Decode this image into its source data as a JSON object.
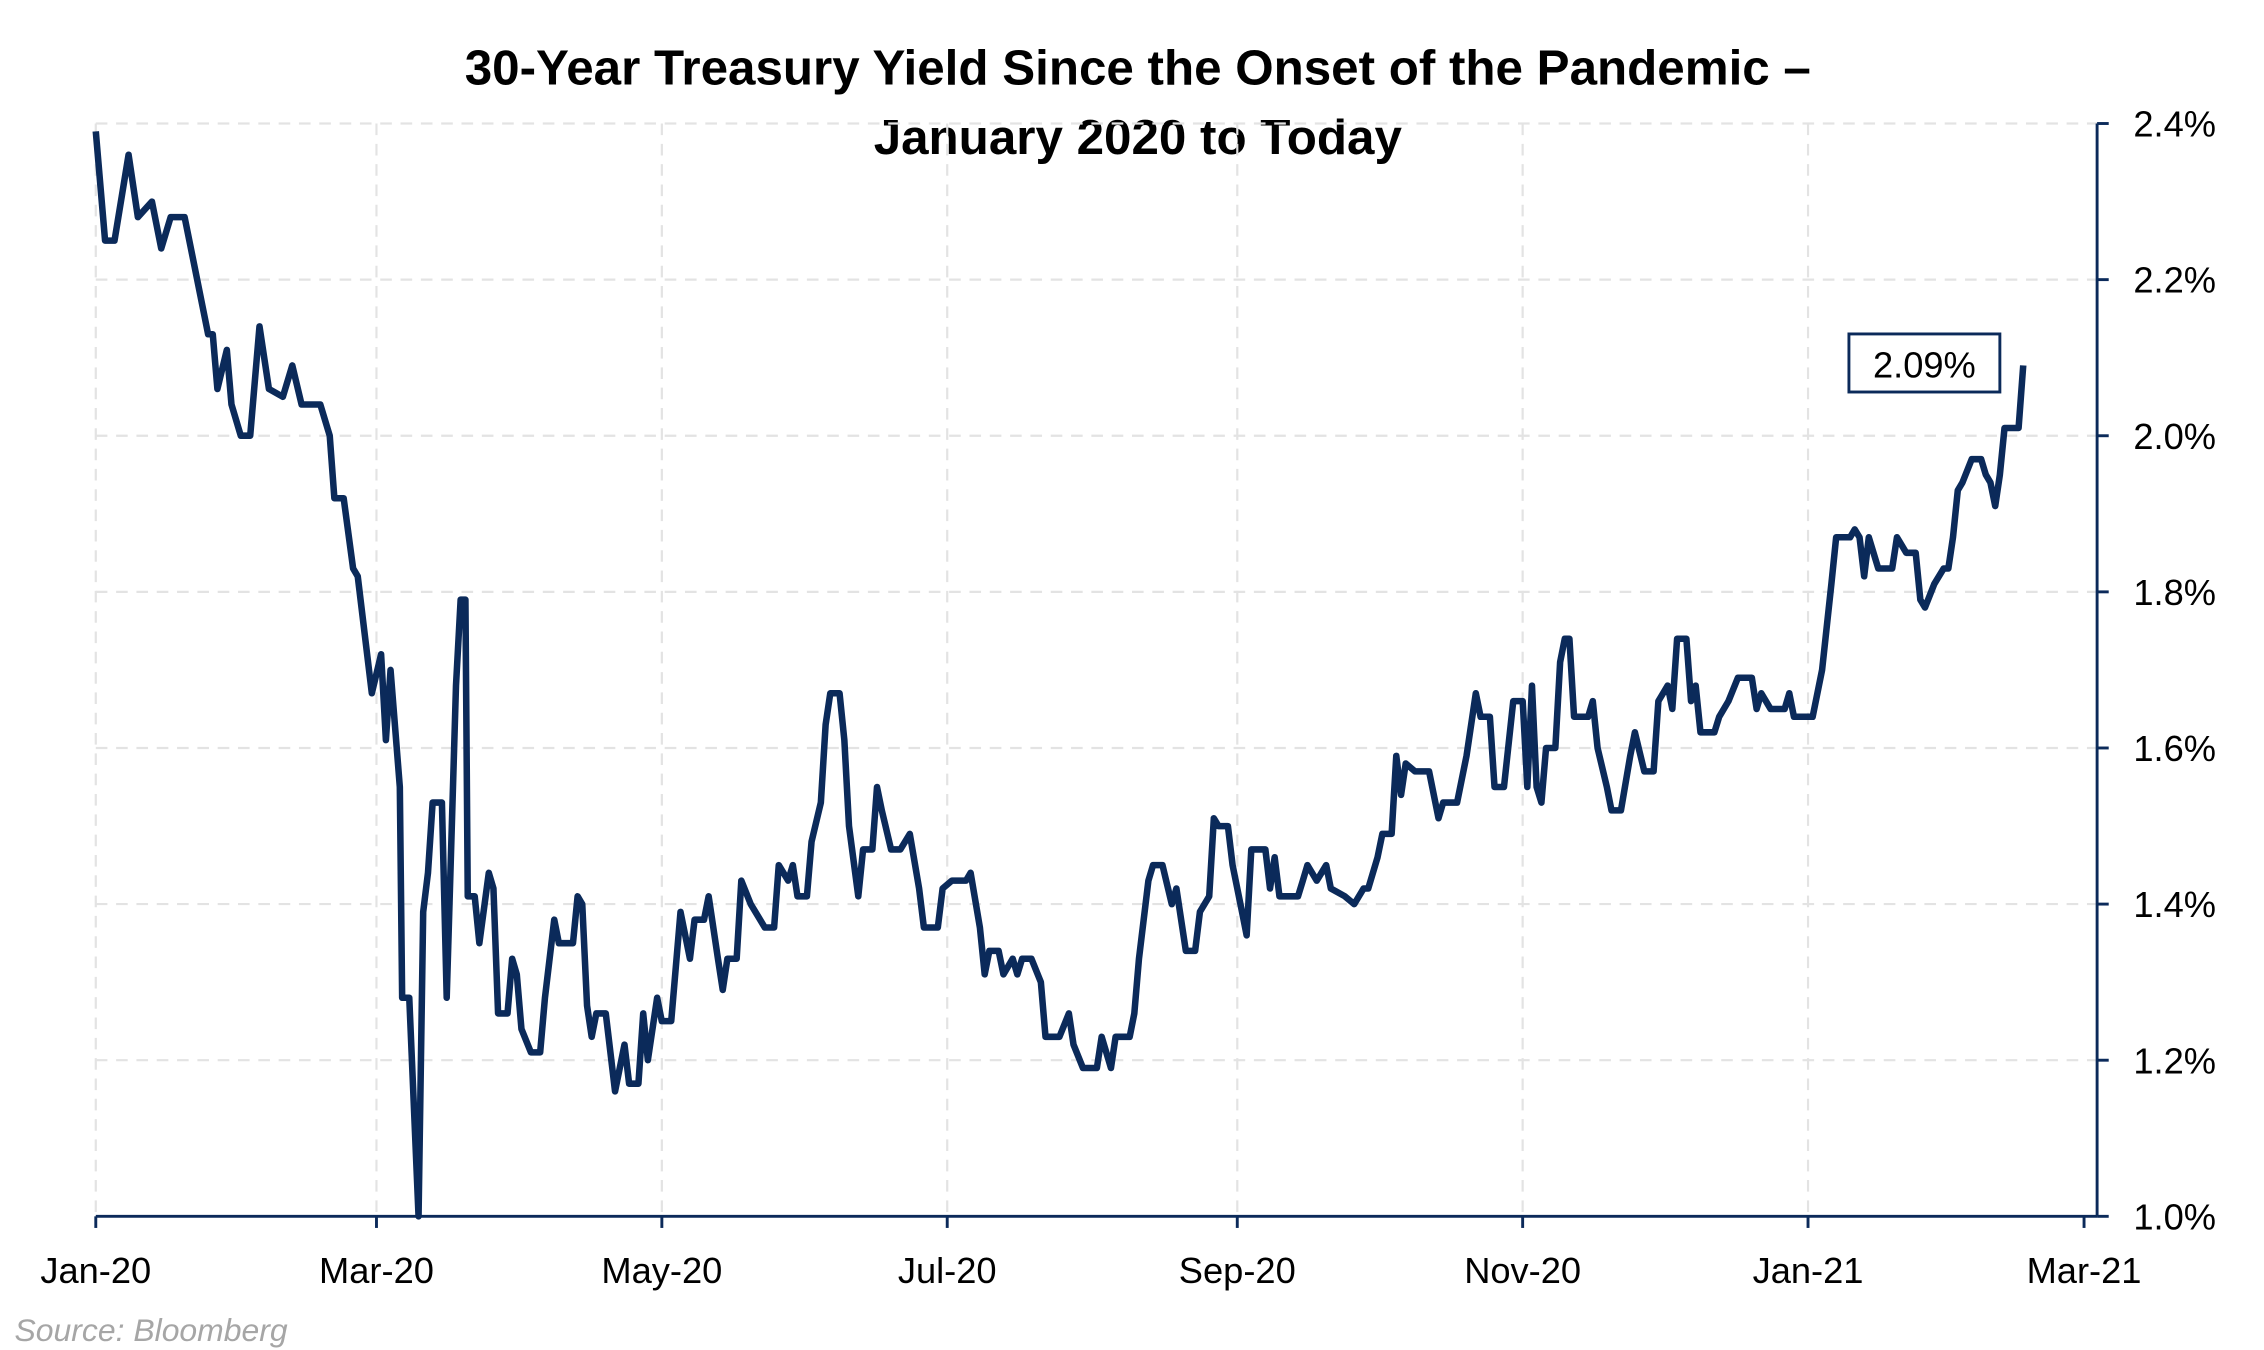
{
  "chart_data": {
    "type": "line",
    "title": [
      "30-Year Treasury Yield Since the Onset of the Pandemic –",
      "January 2020 to Today"
    ],
    "source": "Source: Bloomberg",
    "x_unit": "days since 2020-01-01",
    "xlim": [
      0,
      425
    ],
    "ylim": [
      1.0,
      2.4
    ],
    "y_axis_side": "right",
    "grid": true,
    "x_ticks": [
      {
        "day": 0,
        "label": "Jan-20"
      },
      {
        "day": 60,
        "label": "Mar-20"
      },
      {
        "day": 121,
        "label": "May-20"
      },
      {
        "day": 182,
        "label": "Jul-20"
      },
      {
        "day": 244,
        "label": "Sep-20"
      },
      {
        "day": 305,
        "label": "Nov-20"
      },
      {
        "day": 366,
        "label": "Jan-21"
      },
      {
        "day": 425,
        "label": "Mar-21"
      }
    ],
    "y_ticks": [
      {
        "value": 1.0,
        "label": "1.0%"
      },
      {
        "value": 1.2,
        "label": "1.2%"
      },
      {
        "value": 1.4,
        "label": "1.4%"
      },
      {
        "value": 1.6,
        "label": "1.6%"
      },
      {
        "value": 1.8,
        "label": "1.8%"
      },
      {
        "value": 2.0,
        "label": "2.0%"
      },
      {
        "value": 2.2,
        "label": "2.2%"
      },
      {
        "value": 2.4,
        "label": "2.4%"
      }
    ],
    "annotation": {
      "label": "2.09%",
      "value": 2.09
    },
    "series": [
      {
        "name": "30-Year Treasury Yield",
        "color": "#0b2a5a",
        "x": [
          0,
          2,
          4,
          7,
          9,
          12,
          14,
          16,
          19,
          21,
          24,
          25,
          26,
          28,
          29,
          31,
          33,
          35,
          37,
          40,
          42,
          44,
          48,
          50,
          51,
          53,
          55,
          56,
          59,
          61,
          62,
          63,
          65,
          65.5,
          67,
          69,
          70,
          71,
          72,
          74,
          75,
          77,
          78,
          79,
          79.5,
          81,
          82,
          84,
          85,
          86,
          88,
          89,
          90,
          91,
          93,
          95,
          96,
          98,
          99,
          102,
          103,
          104,
          105,
          106,
          107,
          109,
          111,
          113,
          114,
          116,
          117,
          118,
          120,
          121,
          123,
          125,
          127,
          128,
          130,
          131,
          133,
          134,
          135,
          137,
          138,
          140,
          143,
          145,
          146,
          148,
          149,
          150,
          152,
          153,
          155,
          156,
          157,
          159,
          160,
          161,
          163,
          164,
          166,
          167,
          168,
          170,
          172,
          174,
          176,
          177,
          180,
          181,
          183,
          186,
          187,
          189,
          190,
          191,
          193,
          194,
          196,
          197,
          198,
          200,
          202,
          203,
          206,
          208,
          209,
          211,
          214,
          215,
          217,
          218,
          221,
          222,
          223,
          225,
          226,
          228,
          230,
          231,
          233,
          235,
          236,
          238,
          239,
          240,
          242,
          243,
          245,
          246,
          247,
          250,
          251,
          252,
          253,
          257,
          258,
          259,
          261,
          263,
          264,
          267,
          269,
          271,
          272,
          274,
          275,
          277,
          278,
          279,
          280,
          282,
          285,
          287,
          288,
          291,
          293,
          295,
          296,
          298,
          299,
          301,
          303,
          305,
          306,
          307,
          308,
          309,
          310,
          312,
          313,
          314,
          315,
          316,
          319,
          320,
          321,
          323,
          324,
          326,
          328,
          329,
          331,
          333,
          334,
          336,
          337,
          338,
          340,
          341,
          342,
          343,
          346,
          347,
          349,
          351,
          354,
          355,
          356,
          358,
          361,
          362,
          363,
          367,
          369,
          371,
          372,
          375,
          376,
          377,
          378,
          379,
          381,
          384,
          385,
          387,
          389,
          390,
          391,
          393,
          395,
          396,
          397,
          398,
          399,
          401,
          403,
          404,
          405,
          406,
          407,
          408,
          411,
          412
        ],
        "values": [
          2.39,
          2.25,
          2.25,
          2.36,
          2.28,
          2.3,
          2.24,
          2.28,
          2.28,
          2.22,
          2.13,
          2.13,
          2.06,
          2.11,
          2.04,
          2.0,
          2.0,
          2.14,
          2.06,
          2.05,
          2.09,
          2.04,
          2.04,
          2.0,
          1.92,
          1.92,
          1.83,
          1.82,
          1.67,
          1.72,
          1.61,
          1.7,
          1.55,
          1.28,
          1.28,
          1.0,
          1.39,
          1.44,
          1.53,
          1.53,
          1.28,
          1.68,
          1.79,
          1.79,
          1.41,
          1.41,
          1.35,
          1.44,
          1.42,
          1.26,
          1.26,
          1.33,
          1.31,
          1.24,
          1.21,
          1.21,
          1.28,
          1.38,
          1.35,
          1.35,
          1.41,
          1.4,
          1.27,
          1.23,
          1.26,
          1.26,
          1.16,
          1.22,
          1.17,
          1.17,
          1.26,
          1.2,
          1.28,
          1.25,
          1.25,
          1.39,
          1.33,
          1.38,
          1.38,
          1.41,
          1.33,
          1.29,
          1.33,
          1.33,
          1.43,
          1.4,
          1.37,
          1.37,
          1.45,
          1.43,
          1.45,
          1.41,
          1.41,
          1.48,
          1.53,
          1.63,
          1.67,
          1.67,
          1.61,
          1.5,
          1.41,
          1.47,
          1.47,
          1.55,
          1.52,
          1.47,
          1.47,
          1.49,
          1.42,
          1.37,
          1.37,
          1.42,
          1.43,
          1.43,
          1.44,
          1.37,
          1.31,
          1.34,
          1.34,
          1.31,
          1.33,
          1.31,
          1.33,
          1.33,
          1.3,
          1.23,
          1.23,
          1.26,
          1.22,
          1.19,
          1.19,
          1.23,
          1.19,
          1.23,
          1.23,
          1.26,
          1.33,
          1.43,
          1.45,
          1.45,
          1.4,
          1.42,
          1.34,
          1.34,
          1.39,
          1.41,
          1.51,
          1.5,
          1.5,
          1.45,
          1.39,
          1.36,
          1.47,
          1.47,
          1.42,
          1.46,
          1.41,
          1.41,
          1.43,
          1.45,
          1.43,
          1.45,
          1.42,
          1.41,
          1.4,
          1.42,
          1.42,
          1.46,
          1.49,
          1.49,
          1.59,
          1.54,
          1.58,
          1.57,
          1.57,
          1.51,
          1.53,
          1.53,
          1.59,
          1.67,
          1.64,
          1.64,
          1.55,
          1.55,
          1.66,
          1.66,
          1.55,
          1.68,
          1.55,
          1.53,
          1.6,
          1.6,
          1.71,
          1.74,
          1.74,
          1.64,
          1.64,
          1.66,
          1.6,
          1.55,
          1.52,
          1.52,
          1.59,
          1.62,
          1.57,
          1.57,
          1.66,
          1.68,
          1.65,
          1.74,
          1.74,
          1.66,
          1.68,
          1.62,
          1.62,
          1.64,
          1.66,
          1.69,
          1.69,
          1.65,
          1.67,
          1.65,
          1.65,
          1.67,
          1.64,
          1.64,
          1.7,
          1.81,
          1.87,
          1.87,
          1.88,
          1.87,
          1.82,
          1.87,
          1.83,
          1.83,
          1.87,
          1.85,
          1.85,
          1.79,
          1.78,
          1.81,
          1.83,
          1.83,
          1.87,
          1.93,
          1.94,
          1.97,
          1.97,
          1.95,
          1.94,
          1.91,
          1.95,
          2.01,
          2.01,
          2.09
        ]
      }
    ]
  }
}
